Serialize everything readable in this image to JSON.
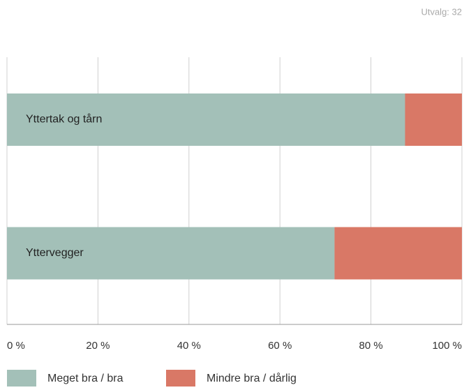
{
  "chart_data": {
    "type": "stacked-bar-horizontal",
    "subtitle": "Utvalg: 32",
    "categories": [
      "Yttertak og tårn",
      "Yttervegger"
    ],
    "series": [
      {
        "name": "Meget bra / bra",
        "color": "#a3c0b8",
        "values": [
          87.5,
          72
        ]
      },
      {
        "name": "Mindre bra / dårlig",
        "color": "#d97866",
        "values": [
          12.5,
          28
        ]
      }
    ],
    "xlim": [
      0,
      100
    ],
    "xticks": [
      {
        "value": 0,
        "label": "0 %"
      },
      {
        "value": 20,
        "label": "20 %"
      },
      {
        "value": 40,
        "label": "40 %"
      },
      {
        "value": 60,
        "label": "60 %"
      },
      {
        "value": 80,
        "label": "80 %"
      },
      {
        "value": 100,
        "label": "100 %"
      }
    ],
    "grid": true
  }
}
